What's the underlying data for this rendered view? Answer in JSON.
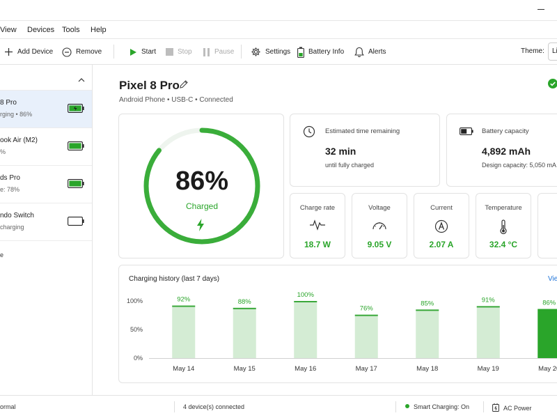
{
  "menu": [
    "View",
    "Devices",
    "Tools",
    "Help"
  ],
  "toolbar": {
    "add_device": "Add Device",
    "remove": "Remove",
    "start": "Start",
    "stop": "Stop",
    "pause": "Pause",
    "settings": "Settings",
    "battery_info": "Battery Info",
    "alerts": "Alerts",
    "theme_label": "Theme:",
    "theme_value": "Li"
  },
  "sidebar": {
    "devices": [
      {
        "name": "8 Pro",
        "status": "rging • 86%",
        "level": 0.86
      },
      {
        "name": "ook Air (M2)",
        "status": "%",
        "level": 1.0
      },
      {
        "name": "ds Pro",
        "status": "e: 78%",
        "level": 0.78
      },
      {
        "name": "ndo Switch",
        "status": "charging",
        "level": 0.0
      }
    ],
    "footer_text": "e"
  },
  "device": {
    "title": "Pixel 8 Pro",
    "meta": "Android Phone  •  USB-C  •  Connected"
  },
  "gauge": {
    "percent_text": "86%",
    "level": 0.86,
    "state": "Charged"
  },
  "info": {
    "time": {
      "label": "Estimated time remaining",
      "value": "32 min",
      "sub": "until fully charged"
    },
    "capacity": {
      "label": "Battery capacity",
      "value": "4,892 mAh",
      "sub": "Design capacity: 5,050 mA"
    }
  },
  "metrics": [
    {
      "label": "Charge rate",
      "value": "18.7 W",
      "icon": "pulse-icon"
    },
    {
      "label": "Voltage",
      "value": "9.05 V",
      "icon": "gauge-icon"
    },
    {
      "label": "Current",
      "value": "2.07 A",
      "icon": "ampere-icon"
    },
    {
      "label": "Temperature",
      "value": "32.4 °C",
      "icon": "thermometer-icon"
    }
  ],
  "history": {
    "title": "Charging history (last 7 days)",
    "link": "Vie"
  },
  "chart_data": {
    "type": "bar",
    "title": "Charging history (last 7 days)",
    "categories": [
      "May 14",
      "May 15",
      "May 16",
      "May 17",
      "May 18",
      "May 19",
      "May 20"
    ],
    "values": [
      92,
      88,
      100,
      76,
      85,
      91,
      86
    ],
    "value_labels": [
      "92%",
      "88%",
      "100%",
      "76%",
      "85%",
      "91%",
      "86%"
    ],
    "y_ticks": [
      "100%",
      "50%",
      "0%"
    ],
    "ylim": [
      0,
      100
    ],
    "highlight_index": 6,
    "colors": {
      "bar": "#d4ecd4",
      "bar_top": "#3aa83a",
      "highlight": "#2aa52a",
      "label": "#2aa52a"
    }
  },
  "statusbar": {
    "mode": "ormal",
    "connected": "4 device(s) connected",
    "smart": "Smart Charging: On",
    "power": "AC Power"
  },
  "colors": {
    "accent": "#2aa52a",
    "link": "#1e73d8",
    "selected": "#e8f0fb"
  }
}
